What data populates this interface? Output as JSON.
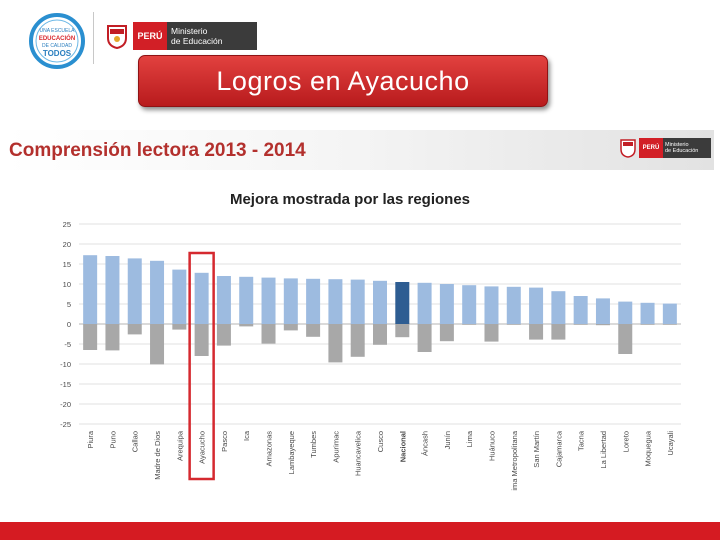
{
  "header": {
    "campaign_logo_lines": [
      "UNA ESCUELA",
      "EDUCACIÓN",
      "DE CALIDAD",
      "TODOS"
    ],
    "peru_label": "PERÚ",
    "ministry_line1": "Ministerio",
    "ministry_line2": "de Educación"
  },
  "banner": {
    "title": "Logros en Ayacucho"
  },
  "content": {
    "section_title": "Comprensión lectora 2013 - 2014",
    "small_peru": "PERÚ",
    "small_ministry_line1": "Ministerio",
    "small_ministry_line2": "de Educación"
  },
  "colors": {
    "improve_bar": "#9dbbe0",
    "national_bar": "#2e5d92",
    "decline_bar": "#a8a8a8",
    "highlight_box": "#d5292f",
    "banner": "#c9282a",
    "bottom_bar": "#d51b22"
  },
  "chart_data": {
    "type": "bar",
    "title": "Mejora mostrada por las regiones",
    "ylim": [
      -25,
      25
    ],
    "yticks": [
      25,
      20,
      15,
      10,
      5,
      0,
      -5,
      -10,
      -15,
      -20,
      -25
    ],
    "grid": true,
    "highlighted_category": "Ayacucho",
    "national_category": "Nacional",
    "categories": [
      "Piura",
      "Puno",
      "Callao",
      "Madre de Dios",
      "Arequipa",
      "Ayacucho",
      "Pasco",
      "Ica",
      "Amazonas",
      "Lambayeque",
      "Tumbes",
      "Apurimac",
      "Huancavelica",
      "Cusco",
      "Nacional",
      "Áncash",
      "Junín",
      "Lima",
      "Huánuco",
      "ima Metropolitana",
      "San Martín",
      "Cajamarca",
      "Tacna",
      "La Libertad",
      "Loreto",
      "Moquegua",
      "Ucayali"
    ],
    "series": [
      {
        "values": [
          17.2,
          17.0,
          16.4,
          15.8,
          13.6,
          12.8,
          12.0,
          11.8,
          11.6,
          11.4,
          11.3,
          11.2,
          11.1,
          10.8,
          10.5,
          10.3,
          10.0,
          9.7,
          9.4,
          9.3,
          9.1,
          8.2,
          7.0,
          6.4,
          5.6,
          5.3,
          5.1
        ]
      },
      {
        "values": [
          -6.5,
          -6.6,
          -2.6,
          -10.1,
          -1.4,
          -8.0,
          -5.4,
          -0.6,
          -4.9,
          -1.6,
          -3.2,
          -9.6,
          -8.2,
          -5.2,
          -3.3,
          -7.0,
          -4.3,
          -0.2,
          -4.4,
          -0.2,
          -3.9,
          -3.9,
          -0.1,
          -0.3,
          -7.5,
          -0.1,
          -0.1
        ]
      }
    ]
  }
}
